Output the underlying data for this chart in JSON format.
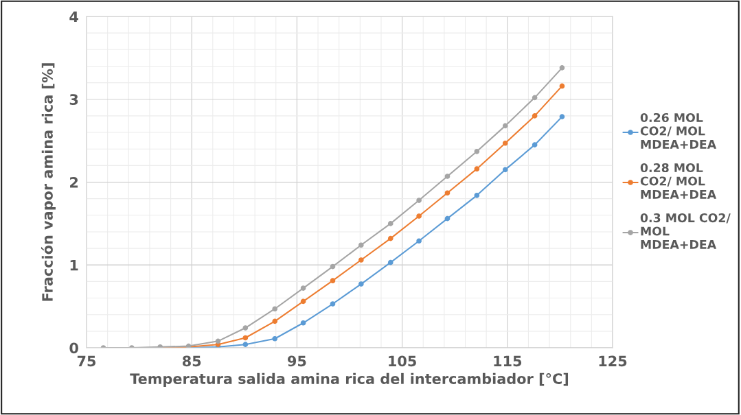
{
  "chart_data": {
    "type": "line",
    "xlabel": "Temperatura salida amina rica del intercambiador [°C]",
    "ylabel": "Fracción vapor amina rica [%]",
    "x": [
      76.6,
      79.3,
      82.0,
      84.7,
      87.5,
      90.1,
      92.9,
      95.6,
      98.4,
      101.1,
      103.9,
      106.6,
      109.3,
      112.1,
      114.8,
      117.6,
      120.2
    ],
    "series": [
      {
        "name": "0.26 MOL\nCO2/ MOL\nMDEA+DEA",
        "color": "#5b9bd5",
        "values": [
          null,
          null,
          0,
          0,
          0.01,
          0.04,
          0.11,
          0.3,
          0.53,
          0.77,
          1.03,
          1.29,
          1.56,
          1.84,
          2.15,
          2.45,
          2.79
        ]
      },
      {
        "name": "0.28 MOL\nCO2/ MOL\nMDEA+DEA",
        "color": "#ed7d31",
        "values": [
          null,
          null,
          0,
          0.01,
          0.04,
          0.12,
          0.32,
          0.56,
          0.81,
          1.06,
          1.32,
          1.59,
          1.87,
          2.16,
          2.47,
          2.8,
          3.16
        ]
      },
      {
        "name": "0.3 MOL CO2/\nMOL\nMDEA+DEA",
        "color": "#a5a5a5",
        "values": [
          0,
          0,
          0.01,
          0.02,
          0.08,
          0.24,
          0.47,
          0.72,
          0.98,
          1.24,
          1.5,
          1.78,
          2.07,
          2.37,
          2.68,
          3.02,
          3.38
        ]
      }
    ],
    "xlim": [
      75,
      125
    ],
    "xticks": [
      75,
      85,
      95,
      105,
      115,
      125
    ],
    "ylim": [
      0,
      4
    ],
    "yticks": [
      0,
      1,
      2,
      3,
      4
    ],
    "grid": true,
    "legend": "right",
    "marker": "circle",
    "line_style": "solid"
  }
}
